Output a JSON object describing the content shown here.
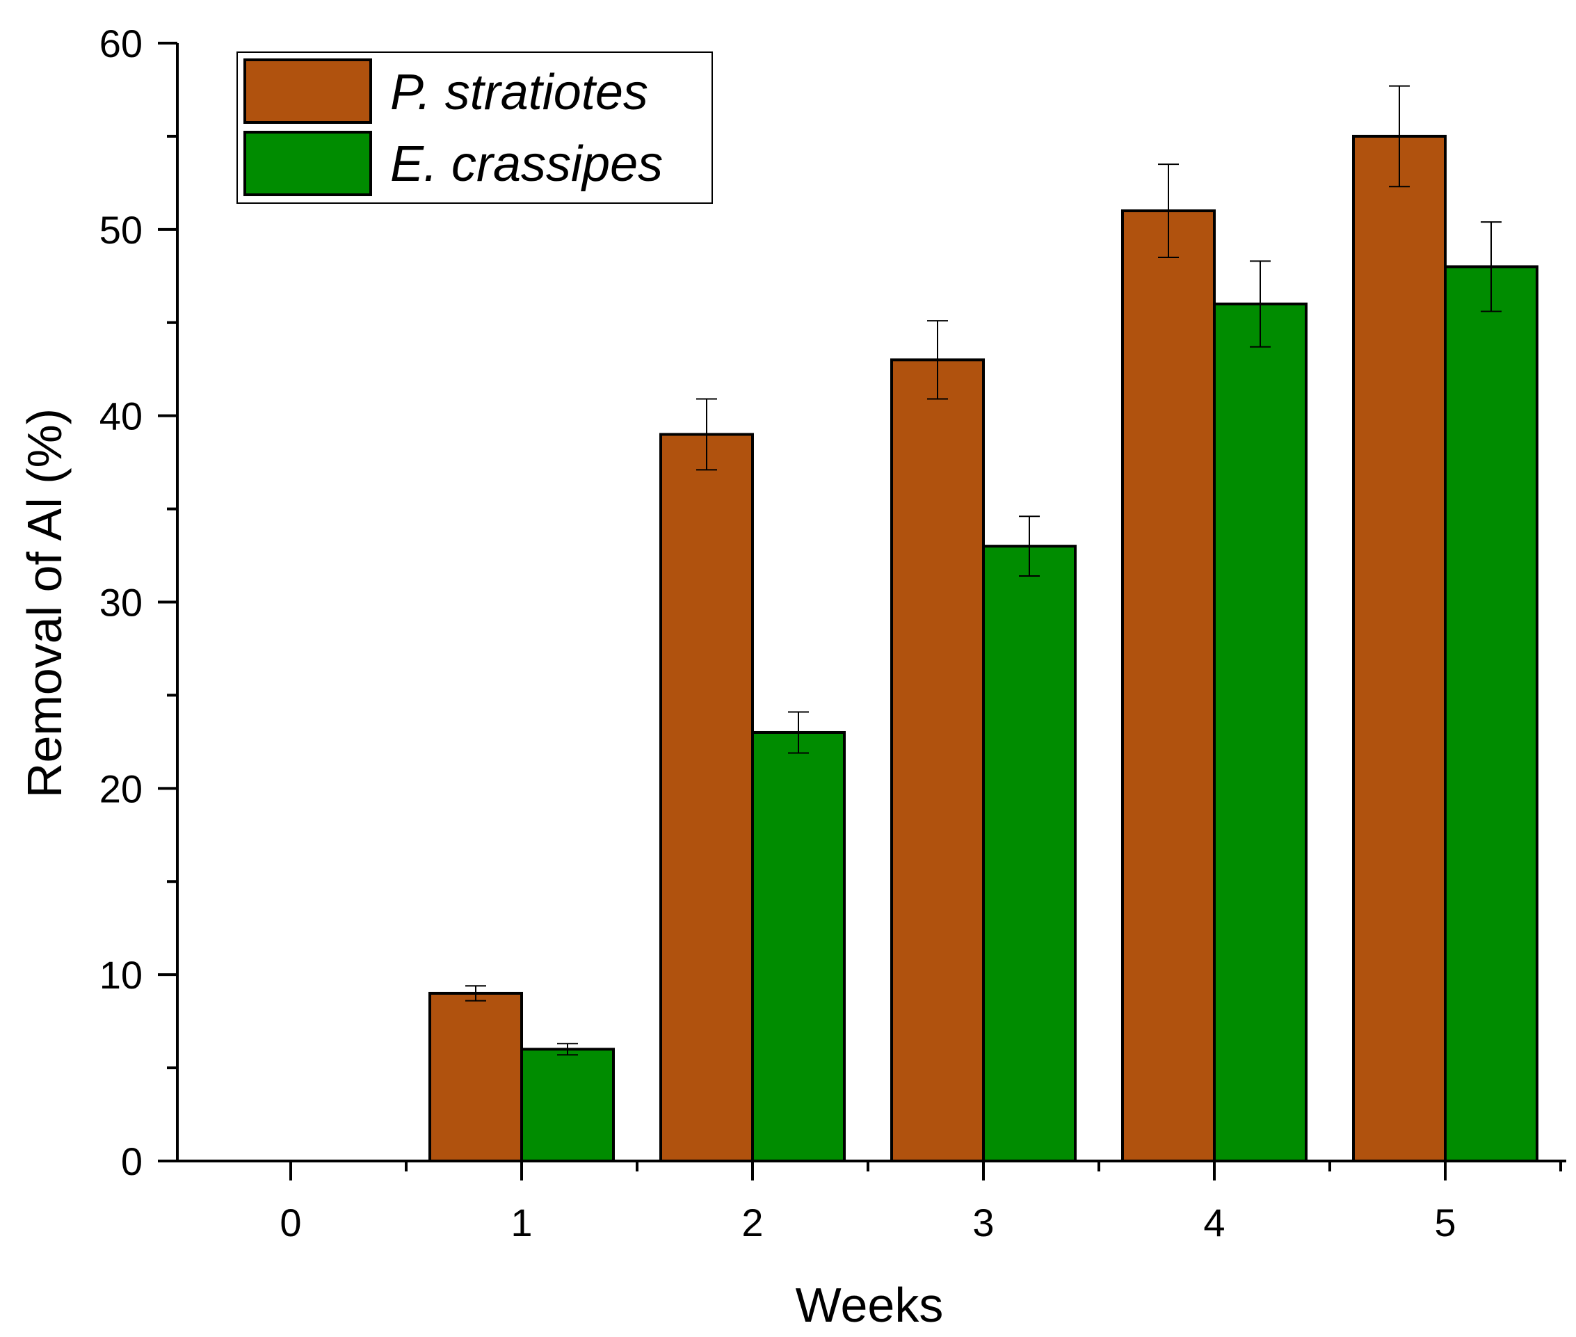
{
  "chart_data": {
    "type": "bar",
    "title": "",
    "xlabel": "Weeks",
    "ylabel": "Removal of Al (%)",
    "categories": [
      "0",
      "1",
      "2",
      "3",
      "4",
      "5"
    ],
    "ylim": [
      0,
      60
    ],
    "yticks": [
      0,
      10,
      20,
      30,
      40,
      50,
      60
    ],
    "grid": false,
    "legend_position": "top-left",
    "series": [
      {
        "name": "P. stratiotes",
        "color": "#b0520e",
        "values": [
          0,
          9,
          39,
          43,
          51,
          55
        ],
        "errors": [
          0,
          0.4,
          1.9,
          2.1,
          2.5,
          2.7
        ]
      },
      {
        "name": "E. crassipes",
        "color": "#008c00",
        "values": [
          0,
          6,
          23,
          33,
          46,
          48
        ],
        "errors": [
          0,
          0.3,
          1.1,
          1.6,
          2.3,
          2.4
        ]
      }
    ]
  }
}
